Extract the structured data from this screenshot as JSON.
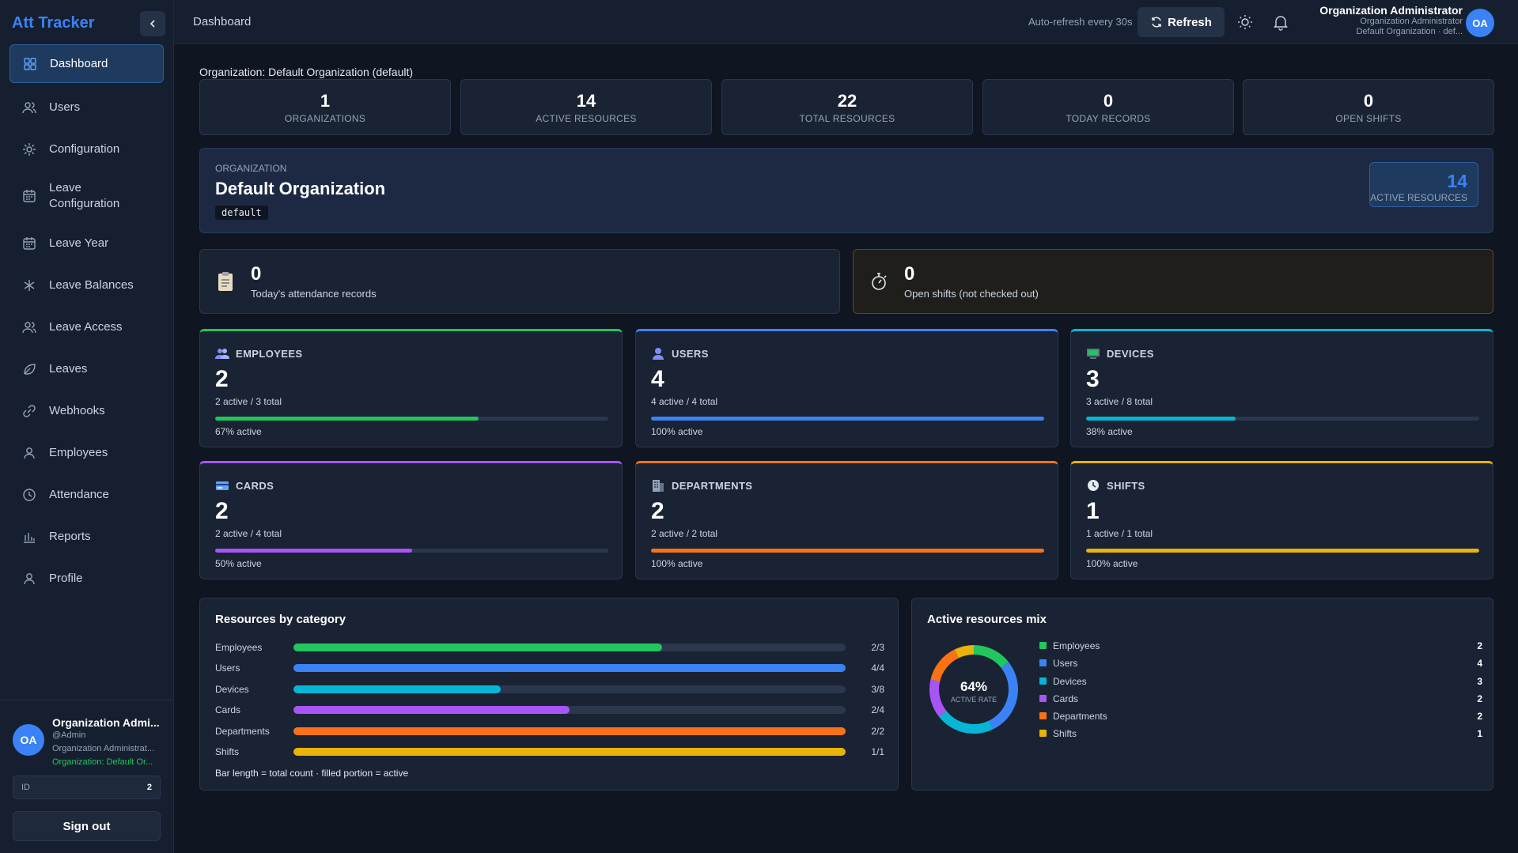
{
  "app": {
    "title": "Att Tracker"
  },
  "sidebar": {
    "items": [
      {
        "label": "Dashboard",
        "icon": "dashboard-icon"
      },
      {
        "label": "Users",
        "icon": "users-icon"
      },
      {
        "label": "Configuration",
        "icon": "gear-icon"
      },
      {
        "label": "Leave Configuration",
        "icon": "calendar-icon"
      },
      {
        "label": "Leave Year",
        "icon": "calendar-icon"
      },
      {
        "label": "Leave Balances",
        "icon": "asterisk-icon"
      },
      {
        "label": "Leave Access",
        "icon": "users-icon"
      },
      {
        "label": "Leaves",
        "icon": "leaf-icon"
      },
      {
        "label": "Webhooks",
        "icon": "link-icon"
      },
      {
        "label": "Employees",
        "icon": "user-icon"
      },
      {
        "label": "Attendance",
        "icon": "clock-icon"
      },
      {
        "label": "Reports",
        "icon": "bar-chart-icon"
      },
      {
        "label": "Profile",
        "icon": "user-icon"
      }
    ],
    "footer": {
      "avatar": "OA",
      "name": "Organization Admi...",
      "handle": "@Admin",
      "role": "Organization Administrat...",
      "org": "Organization: Default Or...",
      "id_label": "ID",
      "id_value": "2",
      "signout": "Sign out"
    }
  },
  "header": {
    "breadcrumb": "Dashboard",
    "auto_refresh": "Auto-refresh every 30s",
    "refresh": "Refresh",
    "user_name": "Organization Administrator",
    "user_role": "Organization Administrator",
    "user_org": "Default Organization · def...",
    "avatar": "OA"
  },
  "main": {
    "org_label": "Organization: Default Organization (default)",
    "stats": [
      {
        "value": "1",
        "label": "Organizations"
      },
      {
        "value": "14",
        "label": "Active Resources"
      },
      {
        "value": "22",
        "label": "Total Resources"
      },
      {
        "value": "0",
        "label": "Today Records"
      },
      {
        "value": "0",
        "label": "Open Shifts"
      }
    ],
    "org_card": {
      "caption": "ORGANIZATION",
      "name": "Default Organization",
      "code": "default",
      "badge_value": "14",
      "badge_label": "ACTIVE RESOURCES"
    },
    "today": {
      "records_value": "0",
      "records_label": "Today's attendance records",
      "shifts_value": "0",
      "shifts_label": "Open shifts (not checked out)"
    },
    "cards": [
      {
        "title": "EMPLOYEES",
        "value": "2",
        "sub": "2 active / 3 total",
        "pct_label": "67% active",
        "fraction": 0.67,
        "color": "#22c55e"
      },
      {
        "title": "USERS",
        "value": "4",
        "sub": "4 active / 4 total",
        "pct_label": "100% active",
        "fraction": 1.0,
        "color": "#3b82f6"
      },
      {
        "title": "DEVICES",
        "value": "3",
        "sub": "3 active / 8 total",
        "pct_label": "38% active",
        "fraction": 0.38,
        "color": "#06b6d4"
      },
      {
        "title": "CARDS",
        "value": "2",
        "sub": "2 active / 4 total",
        "pct_label": "50% active",
        "fraction": 0.5,
        "color": "#a855f7"
      },
      {
        "title": "DEPARTMENTS",
        "value": "2",
        "sub": "2 active / 2 total",
        "pct_label": "100% active",
        "fraction": 1.0,
        "color": "#f97316"
      },
      {
        "title": "SHIFTS",
        "value": "1",
        "sub": "1 active / 1 total",
        "pct_label": "100% active",
        "fraction": 1.0,
        "color": "#eab308"
      }
    ],
    "resources_panel": {
      "title": "Resources by category",
      "rows": [
        {
          "label": "Employees",
          "count": "2/3",
          "fraction": 0.667,
          "color": "#22c55e"
        },
        {
          "label": "Users",
          "count": "4/4",
          "fraction": 1.0,
          "color": "#3b82f6"
        },
        {
          "label": "Devices",
          "count": "3/8",
          "fraction": 0.375,
          "color": "#06b6d4"
        },
        {
          "label": "Cards",
          "count": "2/4",
          "fraction": 0.5,
          "color": "#a855f7"
        },
        {
          "label": "Departments",
          "count": "2/2",
          "fraction": 1.0,
          "color": "#f97316"
        },
        {
          "label": "Shifts",
          "count": "1/1",
          "fraction": 1.0,
          "color": "#eab308"
        }
      ],
      "note": "Bar length = total count · filled portion = active"
    },
    "mix_panel": {
      "title": "Active resources mix",
      "center_value": "64%",
      "center_label": "ACTIVE RATE",
      "legend": [
        {
          "label": "Employees",
          "value": "2",
          "color": "#22c55e"
        },
        {
          "label": "Users",
          "value": "4",
          "color": "#3b82f6"
        },
        {
          "label": "Devices",
          "value": "3",
          "color": "#06b6d4"
        },
        {
          "label": "Cards",
          "value": "2",
          "color": "#a855f7"
        },
        {
          "label": "Departments",
          "value": "2",
          "color": "#f97316"
        },
        {
          "label": "Shifts",
          "value": "1",
          "color": "#eab308"
        }
      ]
    }
  }
}
